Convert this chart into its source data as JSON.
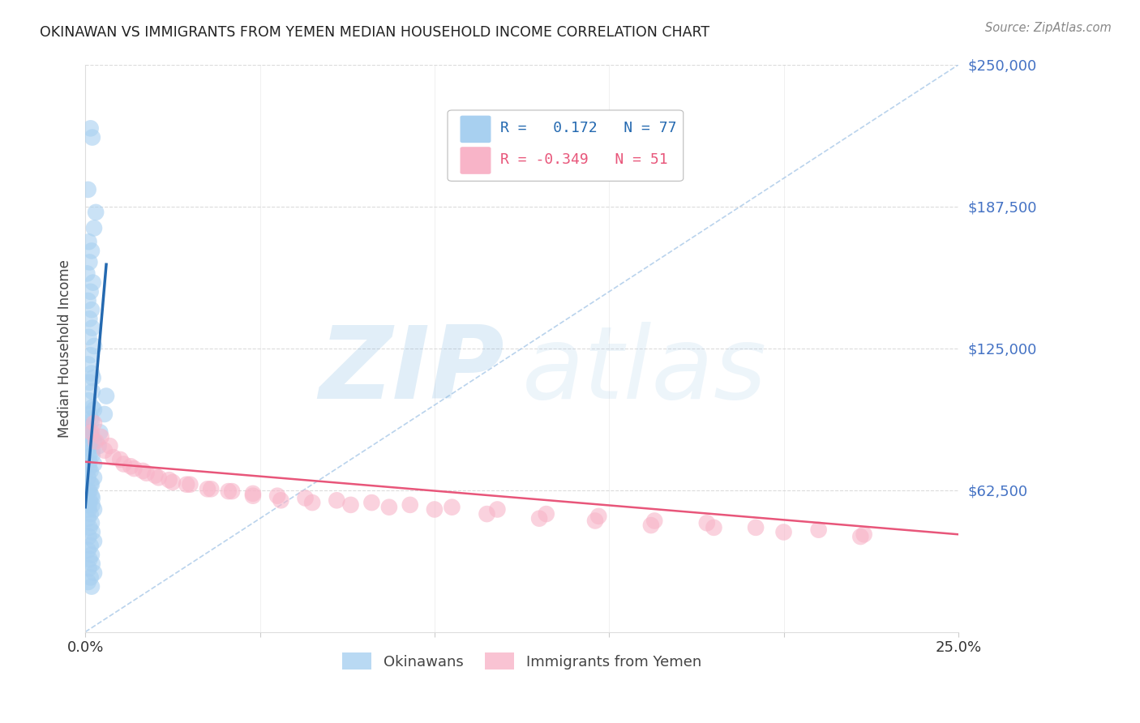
{
  "title": "OKINAWAN VS IMMIGRANTS FROM YEMEN MEDIAN HOUSEHOLD INCOME CORRELATION CHART",
  "source_text": "Source: ZipAtlas.com",
  "ylabel": "Median Household Income",
  "watermark_zip": "ZIP",
  "watermark_atlas": "atlas",
  "xmin": 0.0,
  "xmax": 0.25,
  "ymin": 0,
  "ymax": 250000,
  "yticks": [
    0,
    62500,
    125000,
    187500,
    250000
  ],
  "ytick_labels": [
    "",
    "$62,500",
    "$125,000",
    "$187,500",
    "$250,000"
  ],
  "xticks": [
    0.0,
    0.05,
    0.1,
    0.15,
    0.2,
    0.25
  ],
  "xtick_labels": [
    "0.0%",
    "",
    "",
    "",
    "",
    "25.0%"
  ],
  "blue_R": 0.172,
  "blue_N": 77,
  "pink_R": -0.349,
  "pink_N": 51,
  "blue_color": "#a8d0f0",
  "pink_color": "#f8b4c8",
  "blue_line_color": "#2469b0",
  "pink_line_color": "#e8567a",
  "legend_label_blue": "Okinawans",
  "legend_label_pink": "Immigrants from Yemen",
  "grid_color": "#cccccc",
  "background_color": "#ffffff",
  "blue_scatter_x": [
    0.0015,
    0.002,
    0.0008,
    0.003,
    0.0025,
    0.001,
    0.0018,
    0.0012,
    0.0005,
    0.0022,
    0.0015,
    0.0008,
    0.0018,
    0.0012,
    0.002,
    0.001,
    0.0025,
    0.0015,
    0.0008,
    0.0018,
    0.0012,
    0.002,
    0.001,
    0.0025,
    0.0015,
    0.0008,
    0.0018,
    0.0012,
    0.002,
    0.001,
    0.0025,
    0.0015,
    0.0008,
    0.0018,
    0.0012,
    0.002,
    0.001,
    0.0025,
    0.0015,
    0.0008,
    0.0018,
    0.0012,
    0.002,
    0.001,
    0.0025,
    0.0015,
    0.0008,
    0.0018,
    0.0012,
    0.002,
    0.001,
    0.0025,
    0.0015,
    0.0008,
    0.0018,
    0.0012,
    0.002,
    0.001,
    0.0025,
    0.0015,
    0.0008,
    0.0018,
    0.0012,
    0.002,
    0.001,
    0.0025,
    0.0015,
    0.0008,
    0.0018,
    0.0012,
    0.002,
    0.001,
    0.0038,
    0.0042,
    0.0055,
    0.006,
    0.0022
  ],
  "blue_scatter_y": [
    222000,
    218000,
    195000,
    185000,
    178000,
    172000,
    168000,
    163000,
    158000,
    154000,
    150000,
    146000,
    142000,
    138000,
    134000,
    130000,
    126000,
    122000,
    118000,
    114000,
    110000,
    106000,
    102000,
    98000,
    94000,
    90000,
    86000,
    83000,
    80000,
    77000,
    74000,
    71000,
    68000,
    65000,
    62000,
    59000,
    56000,
    54000,
    52000,
    50000,
    48000,
    46000,
    44000,
    42000,
    40000,
    38000,
    36000,
    34000,
    32000,
    30000,
    28000,
    26000,
    24000,
    22000,
    20000,
    75000,
    78000,
    81000,
    84000,
    87000,
    90000,
    93000,
    96000,
    99000,
    72000,
    68000,
    65000,
    62000,
    60000,
    58000,
    56000,
    54000,
    82000,
    88000,
    96000,
    104000,
    112000
  ],
  "pink_scatter_x": [
    0.0018,
    0.003,
    0.0055,
    0.008,
    0.011,
    0.014,
    0.0175,
    0.021,
    0.025,
    0.03,
    0.036,
    0.042,
    0.048,
    0.055,
    0.063,
    0.072,
    0.082,
    0.093,
    0.105,
    0.118,
    0.132,
    0.147,
    0.163,
    0.178,
    0.192,
    0.21,
    0.223,
    0.0025,
    0.0045,
    0.007,
    0.01,
    0.013,
    0.0165,
    0.02,
    0.024,
    0.029,
    0.035,
    0.041,
    0.048,
    0.056,
    0.065,
    0.076,
    0.087,
    0.1,
    0.115,
    0.13,
    0.146,
    0.162,
    0.18,
    0.2,
    0.222
  ],
  "pink_scatter_y": [
    88000,
    84000,
    80000,
    77000,
    74000,
    72000,
    70000,
    68000,
    66000,
    65000,
    63000,
    62000,
    61000,
    60000,
    59000,
    58000,
    57000,
    56000,
    55000,
    54000,
    52000,
    51000,
    49000,
    48000,
    46000,
    45000,
    43000,
    92000,
    86000,
    82000,
    76000,
    73000,
    71000,
    69000,
    67000,
    65000,
    63000,
    62000,
    60000,
    58000,
    57000,
    56000,
    55000,
    54000,
    52000,
    50000,
    49000,
    47000,
    46000,
    44000,
    42000
  ]
}
